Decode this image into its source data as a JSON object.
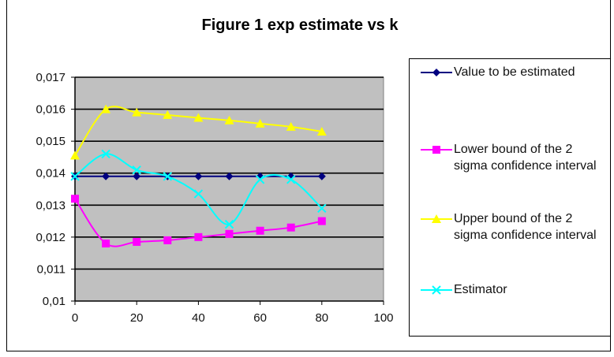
{
  "chart_data": {
    "type": "line",
    "title": "Figure 1 exp estimate vs k",
    "xlabel": "",
    "ylabel": "",
    "x": [
      0,
      10,
      20,
      30,
      40,
      50,
      60,
      70,
      80
    ],
    "xlim": [
      0,
      100
    ],
    "ylim": [
      0.01,
      0.017
    ],
    "x_ticks": [
      "0",
      "20",
      "40",
      "60",
      "80",
      "100"
    ],
    "y_ticks": [
      "0,01",
      "0,011",
      "0,012",
      "0,013",
      "0,014",
      "0,015",
      "0,016",
      "0,017"
    ],
    "grid": "horizontal",
    "plot_background": "#c0c0c0",
    "legend_position": "right",
    "series": [
      {
        "name": "Value to be estimated",
        "color": "#000080",
        "marker": "diamond",
        "values": [
          0.0139,
          0.0139,
          0.0139,
          0.0139,
          0.0139,
          0.0139,
          0.0139,
          0.0139,
          0.0139
        ]
      },
      {
        "name": "Lower bound of the 2 sigma confidence interval",
        "color": "#ff00ff",
        "marker": "square",
        "values": [
          0.0132,
          0.0118,
          0.01185,
          0.0119,
          0.012,
          0.0121,
          0.0122,
          0.0123,
          0.0125
        ]
      },
      {
        "name": "Upper bound of the 2 sigma confidence interval",
        "color": "#ffff00",
        "marker": "triangle",
        "values": [
          0.01455,
          0.016,
          0.0159,
          0.01582,
          0.01573,
          0.01565,
          0.01555,
          0.01545,
          0.0153
        ]
      },
      {
        "name": "Estimator",
        "color": "#00ffff",
        "marker": "x",
        "values": [
          0.0139,
          0.0146,
          0.0141,
          0.0139,
          0.01335,
          0.0124,
          0.0138,
          0.0138,
          0.0129
        ]
      }
    ]
  }
}
